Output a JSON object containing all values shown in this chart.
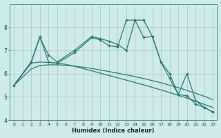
{
  "xlabel": "Humidex (Indice chaleur)",
  "background_color": "#ceeaea",
  "grid_color": "#a8cccc",
  "line_color": "#2a7a70",
  "xlim": [
    -0.5,
    23.5
  ],
  "ylim": [
    4,
    9
  ],
  "yticks": [
    4,
    5,
    6,
    7,
    8
  ],
  "xticks": [
    0,
    1,
    2,
    3,
    4,
    5,
    6,
    7,
    8,
    9,
    10,
    11,
    12,
    13,
    14,
    15,
    16,
    17,
    18,
    19,
    20,
    21,
    22,
    23
  ],
  "curve1_x": [
    0,
    2,
    3,
    4,
    5,
    7,
    9,
    10,
    11,
    12,
    13,
    14,
    15,
    16,
    17,
    18,
    19,
    20,
    21,
    22,
    23
  ],
  "curve1_y": [
    5.5,
    6.5,
    7.55,
    6.8,
    6.5,
    7.0,
    7.6,
    7.5,
    7.4,
    7.25,
    7.0,
    8.3,
    8.3,
    7.6,
    6.5,
    6.0,
    5.1,
    5.05,
    4.7,
    4.55,
    4.35
  ],
  "curve2_x": [
    0,
    2,
    3,
    4,
    5,
    7,
    9,
    10,
    11,
    12,
    13,
    14,
    15,
    16,
    17,
    18,
    19,
    20,
    21,
    22,
    23
  ],
  "curve2_y": [
    5.5,
    6.5,
    7.6,
    6.5,
    6.45,
    6.9,
    7.55,
    7.45,
    7.2,
    7.15,
    8.3,
    8.3,
    7.55,
    7.6,
    6.5,
    5.8,
    5.1,
    6.0,
    4.85,
    4.55,
    4.35
  ],
  "smooth1_x": [
    0,
    2,
    3,
    4,
    5,
    6,
    7,
    8,
    9,
    10,
    11,
    12,
    13,
    14,
    15,
    16,
    17,
    18,
    19,
    20,
    21,
    22,
    23
  ],
  "smooth1_y": [
    5.5,
    6.2,
    6.35,
    6.38,
    6.38,
    6.36,
    6.32,
    6.28,
    6.22,
    6.16,
    6.09,
    6.02,
    5.95,
    5.87,
    5.79,
    5.7,
    5.61,
    5.5,
    5.4,
    5.28,
    5.16,
    5.03,
    4.88
  ],
  "smooth2_x": [
    0,
    2,
    3,
    4,
    5,
    6,
    7,
    8,
    9,
    10,
    11,
    12,
    13,
    14,
    15,
    16,
    17,
    18,
    19,
    20,
    21,
    22,
    23
  ],
  "smooth2_y": [
    5.5,
    6.45,
    6.5,
    6.48,
    6.45,
    6.4,
    6.32,
    6.22,
    6.12,
    6.02,
    5.92,
    5.82,
    5.72,
    5.62,
    5.52,
    5.41,
    5.3,
    5.19,
    5.07,
    4.95,
    4.82,
    4.68,
    4.55
  ]
}
